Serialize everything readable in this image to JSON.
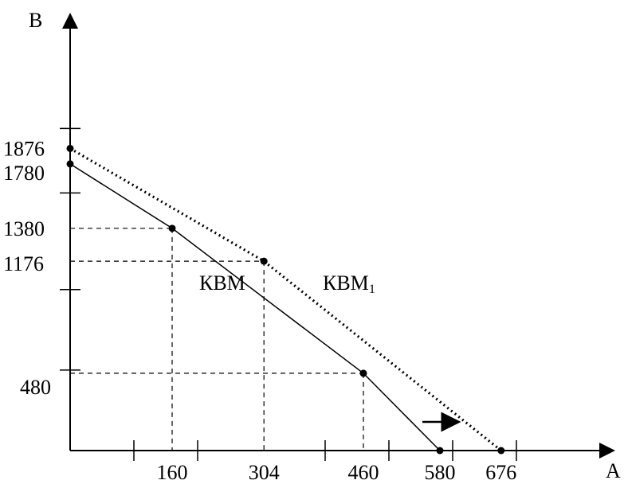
{
  "chart_data": {
    "type": "line",
    "xlabel": "A",
    "ylabel": "B",
    "xlim": [
      0,
      853
    ],
    "ylim": [
      0,
      2310
    ],
    "x_tick_labels": [
      "160",
      "304",
      "460",
      "580",
      "676"
    ],
    "y_tick_labels": [
      "1876",
      "1780",
      "1380",
      "1176",
      "480"
    ],
    "x_unlabeled_ticks": [
      100,
      200,
      400,
      500,
      600,
      700
    ],
    "y_unlabeled_ticks": [
      1000,
      2000,
      1600,
      500
    ],
    "series": [
      {
        "name": "КВМ",
        "style": "solid",
        "points": [
          [
            0,
            1780
          ],
          [
            160,
            1380
          ],
          [
            460,
            480
          ],
          [
            580,
            0
          ]
        ]
      },
      {
        "name": "КВМ",
        "subscript": "1",
        "style": "dotted",
        "points": [
          [
            0,
            1876
          ],
          [
            304,
            1176
          ],
          [
            676,
            0
          ]
        ]
      }
    ],
    "guides": [
      {
        "x": 160,
        "y": 1380
      },
      {
        "x": 304,
        "y": 1176
      },
      {
        "x": 460,
        "y": 480
      }
    ],
    "annotations": [
      {
        "type": "arrow",
        "direction": "right",
        "meaning": "shift of curve"
      }
    ],
    "grid": false,
    "legend": "none"
  }
}
